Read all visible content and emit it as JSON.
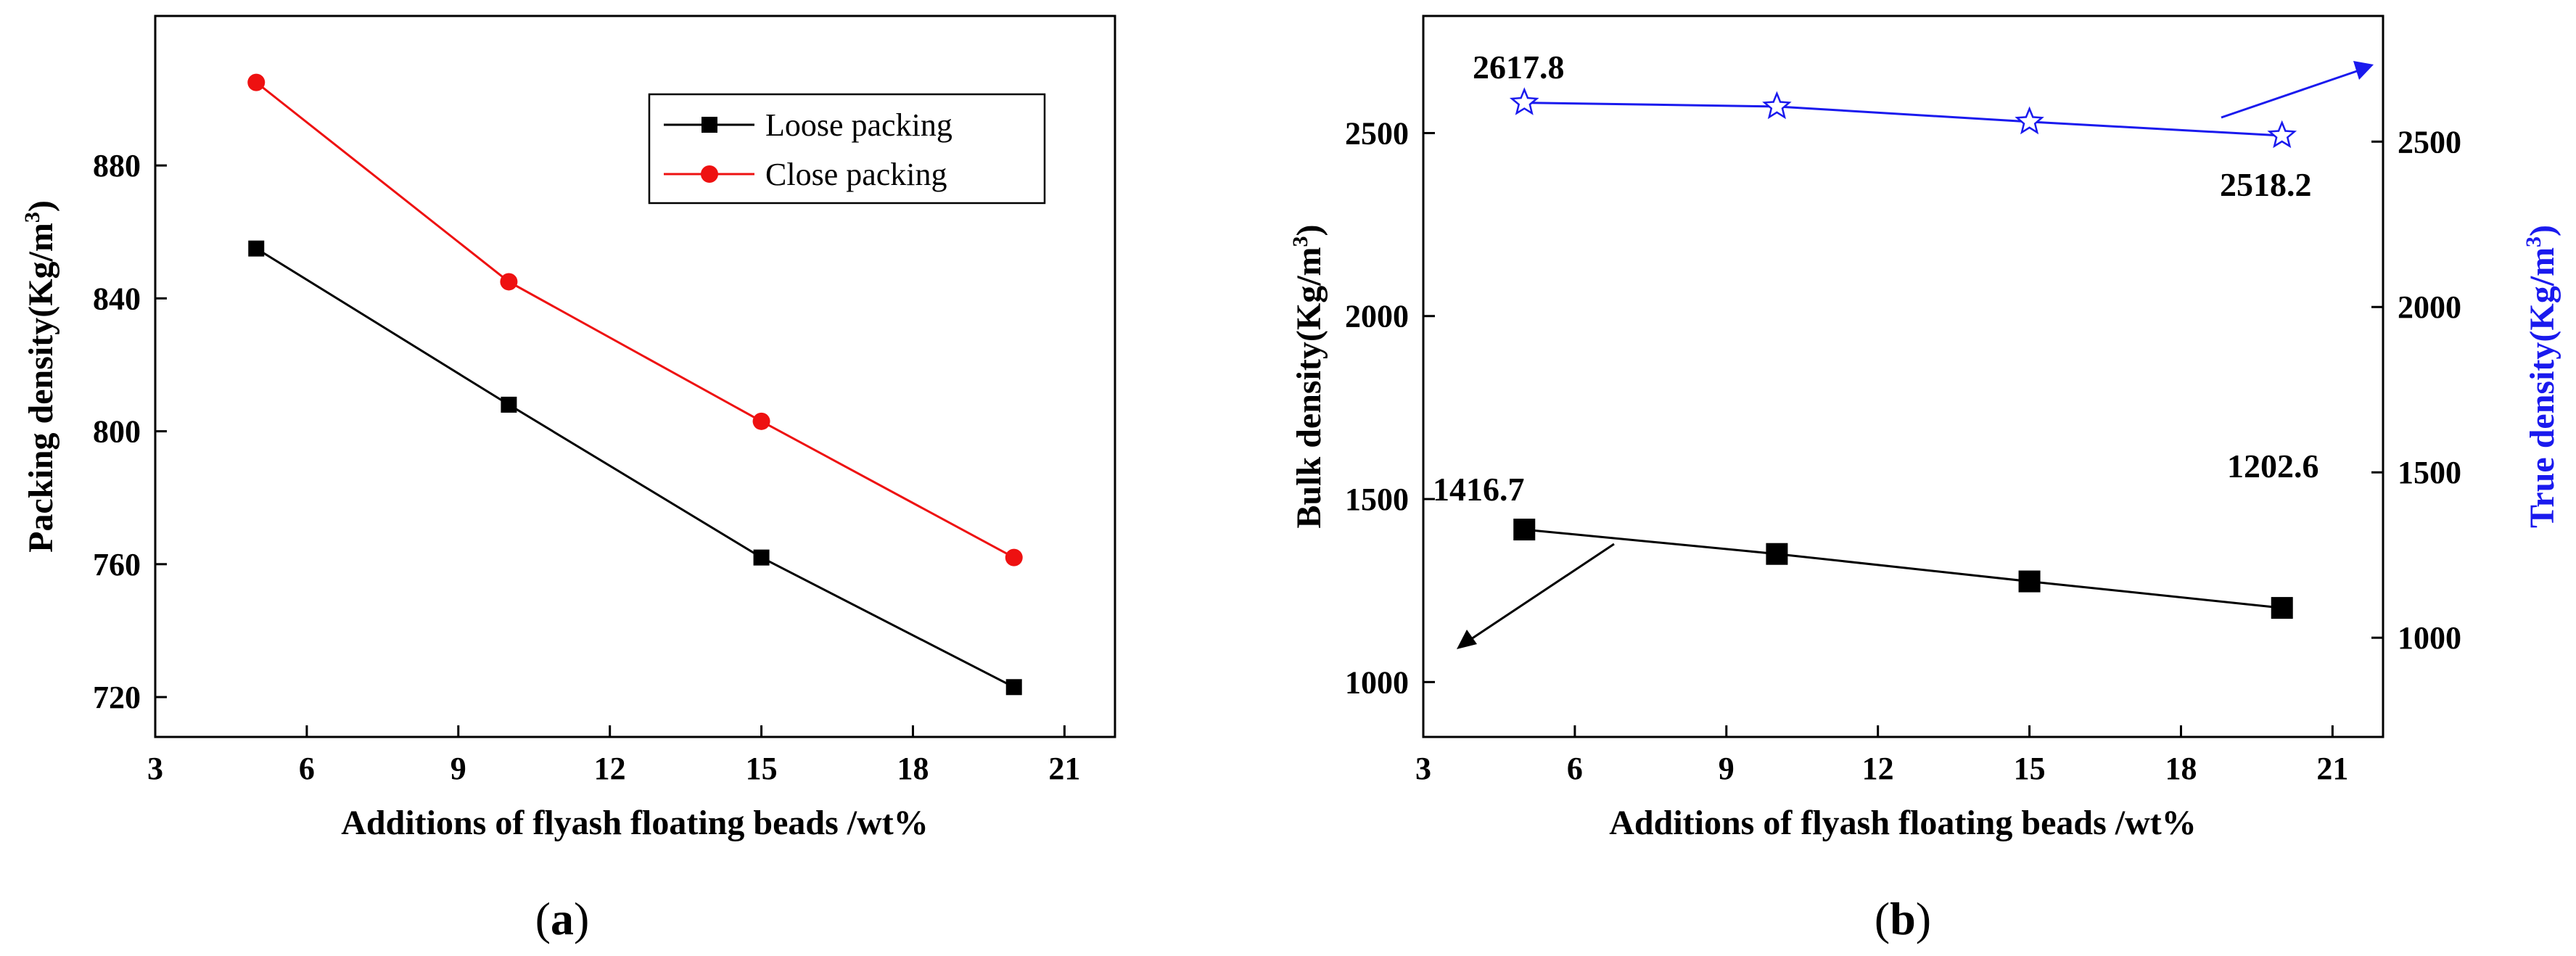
{
  "chart_data": [
    {
      "type": "line",
      "panel_label": "a",
      "xlabel": "Additions of flyash floating beads /wt%",
      "ylabel": "Packing density(Kg/m3)",
      "xlim": [
        3,
        22
      ],
      "ylim": [
        708,
        925
      ],
      "xticks": [
        3,
        6,
        9,
        12,
        15,
        18,
        21
      ],
      "yticks": [
        720,
        760,
        800,
        840,
        880
      ],
      "legend_position": "top-right",
      "grid": false,
      "series": [
        {
          "name": "Loose packing",
          "color": "#000000",
          "marker": "square",
          "x": [
            5,
            10,
            15,
            20
          ],
          "y": [
            855,
            808,
            762,
            723
          ]
        },
        {
          "name": "Close packing",
          "color": "#ee1111",
          "marker": "circle",
          "x": [
            5,
            10,
            15,
            20
          ],
          "y": [
            905,
            845,
            803,
            762
          ]
        }
      ]
    },
    {
      "type": "line",
      "panel_label": "b",
      "xlabel": "Additions of flyash floating beads /wt%",
      "ylabel": "Bulk density(Kg/m3)",
      "ylabel_right": "True density(Kg/m3)",
      "xlim": [
        3,
        22
      ],
      "ylim": [
        850,
        2820
      ],
      "ylim_right": [
        700,
        2880
      ],
      "xticks": [
        3,
        6,
        9,
        12,
        15,
        18,
        21
      ],
      "yticks": [
        1000,
        1500,
        2000,
        2500
      ],
      "yticks_right": [
        1000,
        1500,
        2000,
        2500
      ],
      "grid": false,
      "series": [
        {
          "axis": "left",
          "color": "#000000",
          "marker": "square",
          "x": [
            5,
            10,
            15,
            20
          ],
          "y": [
            1416.7,
            1350,
            1275,
            1202.6
          ]
        },
        {
          "axis": "right",
          "color": "#1a1aee",
          "marker": "star-open",
          "x": [
            5,
            10,
            15,
            20
          ],
          "y": [
            2617.8,
            2606,
            2560,
            2518.2
          ]
        }
      ],
      "annotations": [
        "1416.7",
        "1202.6",
        "2617.8",
        "2518.2"
      ]
    }
  ],
  "colors": {
    "axis": "#000000",
    "close": "#ee1111",
    "true_density": "#1a1aee"
  }
}
